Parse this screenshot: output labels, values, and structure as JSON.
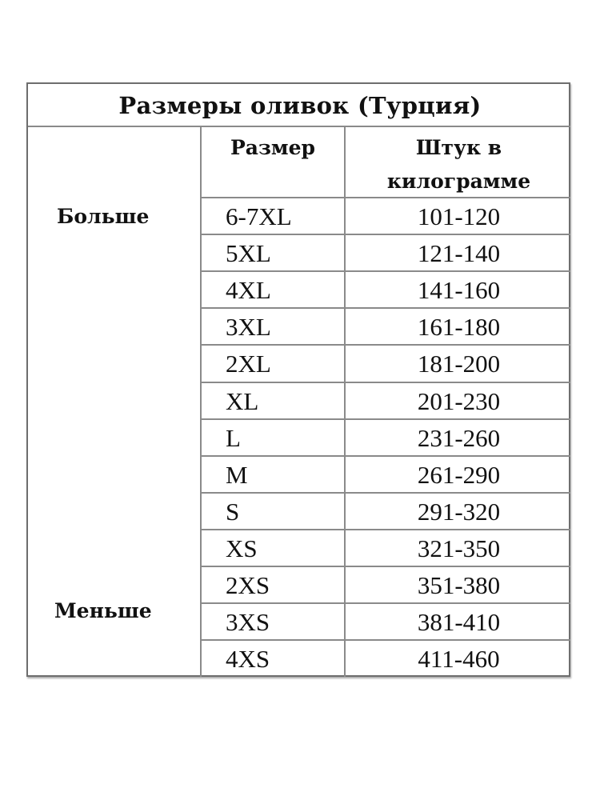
{
  "title": "Размеры оливок (Турция)",
  "headers": {
    "size": "Размер",
    "per_kg_line1": "Штук в",
    "per_kg_line2": "килограмме"
  },
  "side_labels": {
    "top": "Больше",
    "bottom": "Меньше"
  },
  "rows": [
    {
      "size": "6-7XL",
      "count": "101-120"
    },
    {
      "size": "5XL",
      "count": "121-140"
    },
    {
      "size": "4XL",
      "count": "141-160"
    },
    {
      "size": "3XL",
      "count": "161-180"
    },
    {
      "size": "2XL",
      "count": "181-200"
    },
    {
      "size": "XL",
      "count": "201-230"
    },
    {
      "size": "L",
      "count": "231-260"
    },
    {
      "size": "M",
      "count": "261-290"
    },
    {
      "size": "S",
      "count": "291-320"
    },
    {
      "size": "XS",
      "count": "321-350"
    },
    {
      "size": "2XS",
      "count": "351-380"
    },
    {
      "size": "3XS",
      "count": "381-410"
    },
    {
      "size": "4XS",
      "count": "411-460"
    }
  ]
}
